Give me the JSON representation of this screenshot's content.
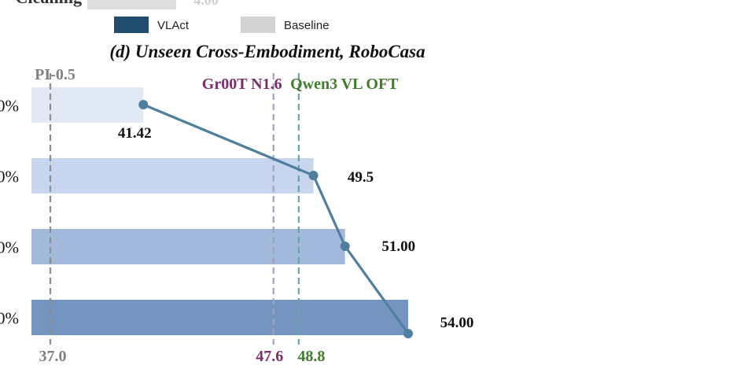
{
  "top_fragment": {
    "left_text": "Cleaning",
    "value_text": "4.00"
  },
  "legend": {
    "items": [
      {
        "label": "VLAct",
        "color": "#1f4e6e"
      },
      {
        "label": "Baseline",
        "color": "#d3d3d3"
      }
    ]
  },
  "chart_data": {
    "type": "bar",
    "title": "(d) Unseen Cross-Embodiment, RoboCasa",
    "orientation": "horizontal",
    "categories": [
      "0%",
      "0%",
      "0%",
      "0%"
    ],
    "values": [
      41.42,
      49.5,
      51.0,
      54.0
    ],
    "value_labels": [
      "41.42",
      "49.5",
      "51.00",
      "54.00"
    ],
    "bar_colors": [
      "#e1e9f5",
      "#c7d6ee",
      "#a3b9dc",
      "#7395bf"
    ],
    "line_color": "#4f7f9f",
    "xlim": [
      37.0,
      54.0
    ],
    "reference_lines": [
      {
        "name": "PI-0.5",
        "value_label": "37.0",
        "value": 37.0,
        "color": "#8c8c8c",
        "label_color": "#808080"
      },
      {
        "name": "Gr00T N1.6",
        "value_label": "47.6",
        "value": 47.6,
        "color": "#9ea2c2",
        "label_color": "#7b2d6e"
      },
      {
        "name": "Qwen3 VL OFT",
        "value_label": "48.8",
        "value": 48.8,
        "color": "#5fa9a5",
        "label_color": "#3f7d2a"
      }
    ]
  }
}
